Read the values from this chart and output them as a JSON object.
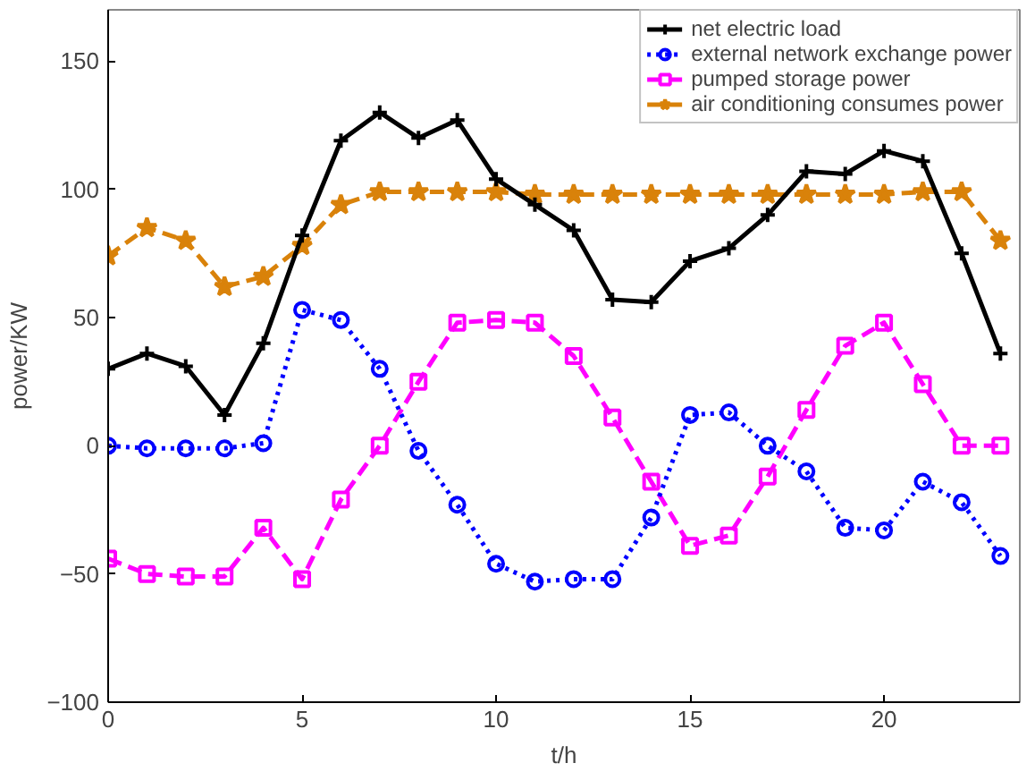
{
  "chart_data": {
    "type": "line",
    "xlabel": "t/h",
    "ylabel": "power/KW",
    "xlim": [
      0,
      23.5
    ],
    "ylim": [
      -100,
      170
    ],
    "xticks": [
      0,
      5,
      10,
      15,
      20
    ],
    "yticks": [
      -100,
      -50,
      0,
      50,
      100,
      150
    ],
    "grid": false,
    "legend": "top right",
    "x": [
      0,
      1,
      2,
      3,
      4,
      5,
      6,
      7,
      8,
      9,
      10,
      11,
      12,
      13,
      14,
      15,
      16,
      17,
      18,
      19,
      20,
      21,
      22,
      23
    ],
    "series": [
      {
        "name": "net electric load",
        "color": "#000000",
        "marker": "cross",
        "line_style": "solid",
        "values": [
          30,
          36,
          31,
          12,
          40,
          82,
          119,
          130,
          120,
          127,
          104,
          94,
          84,
          57,
          56,
          72,
          77,
          90,
          107,
          106,
          115,
          111,
          75,
          36
        ]
      },
      {
        "name": "external network exchange power",
        "color": "#0000ff",
        "marker": "circle",
        "line_style": "dotted",
        "values": [
          0,
          -1,
          -1,
          -1,
          1,
          53,
          49,
          30,
          -2,
          -23,
          -46,
          -53,
          -52,
          -52,
          -28,
          12,
          13,
          0,
          -10,
          -32,
          -33,
          -14,
          -22,
          -43
        ]
      },
      {
        "name": "pumped storage power",
        "color": "#ff00ff",
        "marker": "square",
        "line_style": "dashed",
        "values": [
          -44,
          -50,
          -51,
          -51,
          -32,
          -52,
          -21,
          0,
          25,
          48,
          49,
          48,
          35,
          11,
          -14,
          -39,
          -35,
          -12,
          14,
          39,
          48,
          24,
          0,
          0
        ]
      },
      {
        "name": "air conditioning consumes power",
        "color": "#d9820a",
        "marker": "star",
        "line_style": "dashed",
        "values": [
          74,
          85,
          80,
          62,
          66,
          78,
          94,
          99,
          99,
          99,
          99,
          98,
          98,
          98,
          98,
          98,
          98,
          98,
          98,
          98,
          98,
          99,
          99,
          80
        ]
      }
    ]
  }
}
